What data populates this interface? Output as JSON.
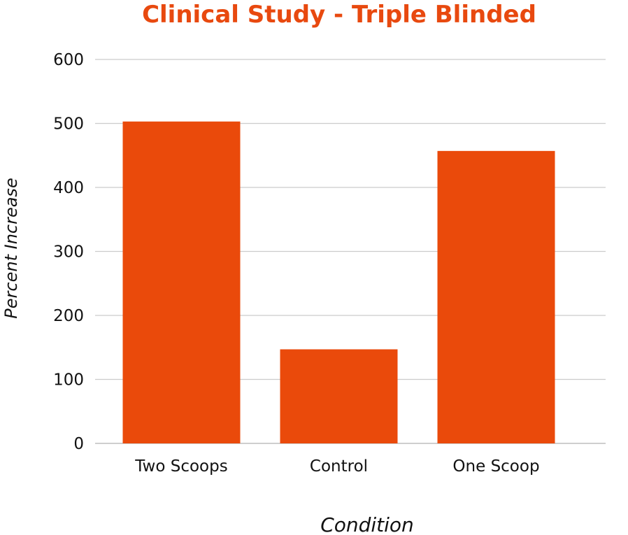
{
  "chart_data": {
    "type": "bar",
    "title": "Clinical Study - Triple Blinded",
    "xlabel": "Condition",
    "ylabel": "Percent Increase",
    "categories": [
      "Two Scoops",
      "Control",
      "One Scoop"
    ],
    "values": [
      503,
      147,
      457
    ],
    "ylim": [
      0,
      600
    ],
    "yticks": [
      0,
      100,
      200,
      300,
      400,
      500,
      600
    ],
    "grid": true,
    "bar_color": "#ea4a0b",
    "title_color": "#e8490f"
  }
}
